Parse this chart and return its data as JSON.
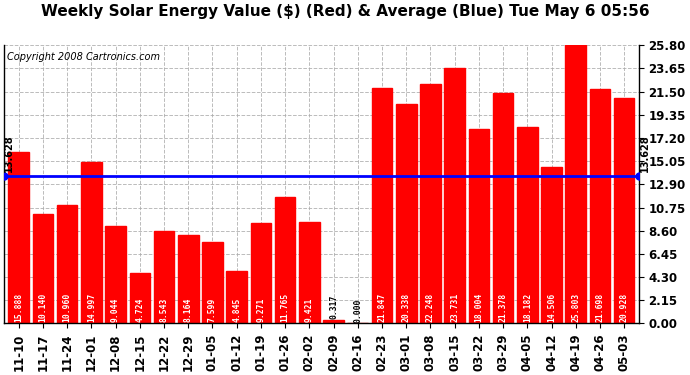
{
  "title": "Weekly Solar Energy Value ($) (Red) & Average (Blue) Tue May 6 05:56",
  "copyright": "Copyright 2008 Cartronics.com",
  "categories": [
    "11-10",
    "11-17",
    "11-24",
    "12-01",
    "12-08",
    "12-15",
    "12-22",
    "12-29",
    "01-05",
    "01-12",
    "01-19",
    "01-26",
    "02-02",
    "02-09",
    "02-16",
    "02-23",
    "03-01",
    "03-08",
    "03-15",
    "03-22",
    "03-29",
    "04-05",
    "04-12",
    "04-19",
    "04-26",
    "05-03"
  ],
  "values": [
    15.888,
    10.14,
    10.96,
    14.997,
    9.044,
    4.724,
    8.543,
    8.164,
    7.599,
    4.845,
    9.271,
    11.765,
    9.421,
    0.317,
    0.0,
    21.847,
    20.338,
    22.248,
    23.731,
    18.004,
    21.378,
    18.182,
    14.506,
    25.803,
    21.698,
    20.928
  ],
  "average": 13.628,
  "bar_color": "#FF0000",
  "avg_color": "#0000FF",
  "background_color": "#FFFFFF",
  "plot_bg_color": "#FFFFFF",
  "grid_color": "#AAAAAA",
  "yticks": [
    0.0,
    2.15,
    4.3,
    6.45,
    8.6,
    10.75,
    12.9,
    15.05,
    17.2,
    19.35,
    21.5,
    23.65,
    25.8
  ],
  "ylim": [
    0,
    25.8
  ],
  "title_fontsize": 11,
  "copyright_fontsize": 7,
  "bar_label_fontsize": 5.8,
  "tick_fontsize": 8.5,
  "avg_label": "13.628"
}
